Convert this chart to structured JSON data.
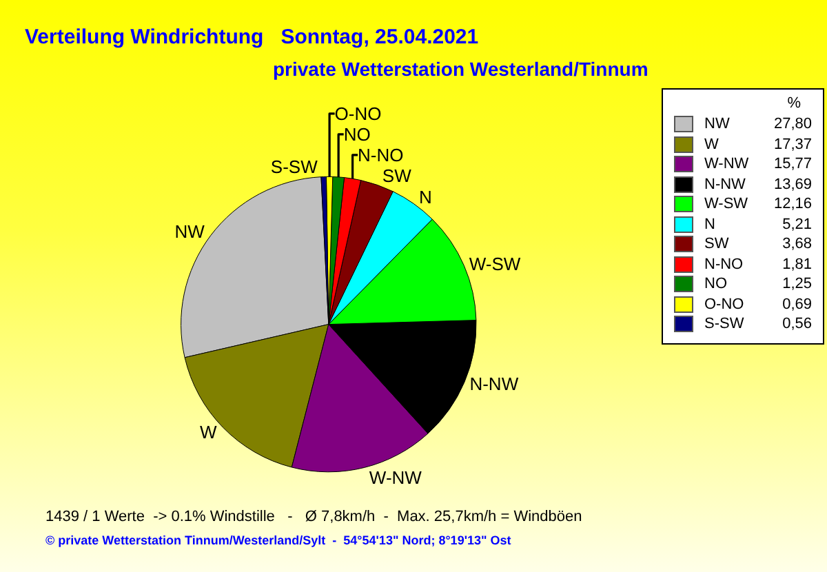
{
  "chart_data": {
    "type": "pie",
    "title": "Verteilung Windrichtung   Sonntag, 25.04.2021",
    "subtitle": "private Wetterstation Westerland/Tinnum",
    "categories": [
      "NW",
      "W",
      "W-NW",
      "N-NW",
      "W-SW",
      "N",
      "SW",
      "N-NO",
      "NO",
      "O-NO",
      "S-SW"
    ],
    "values": [
      27.8,
      17.37,
      15.77,
      13.69,
      12.16,
      5.21,
      3.68,
      1.81,
      1.25,
      0.69,
      0.56
    ],
    "value_labels": [
      "27,80",
      "17,37",
      "15,77",
      "13,69",
      "12,16",
      "5,21",
      "3,68",
      "1,81",
      "1,25",
      "0,69",
      "0,56"
    ],
    "colors": [
      "#c0c0c0",
      "#808000",
      "#800080",
      "#000000",
      "#00ff00",
      "#00ffff",
      "#800000",
      "#ff0000",
      "#008000",
      "#ffff00",
      "#000080"
    ],
    "legend": "top right",
    "legend_title": "%",
    "annotations": [
      "1439 / 1 Werte  -> 0.1% Windstille   -   Ø 7,8km/h  -  Max. 25,7km/h = Windböen",
      "© private Wetterstation Tinnum/Westerland/Sylt  -  54°54'13\" Nord; 8°19'13\" Ost"
    ]
  }
}
